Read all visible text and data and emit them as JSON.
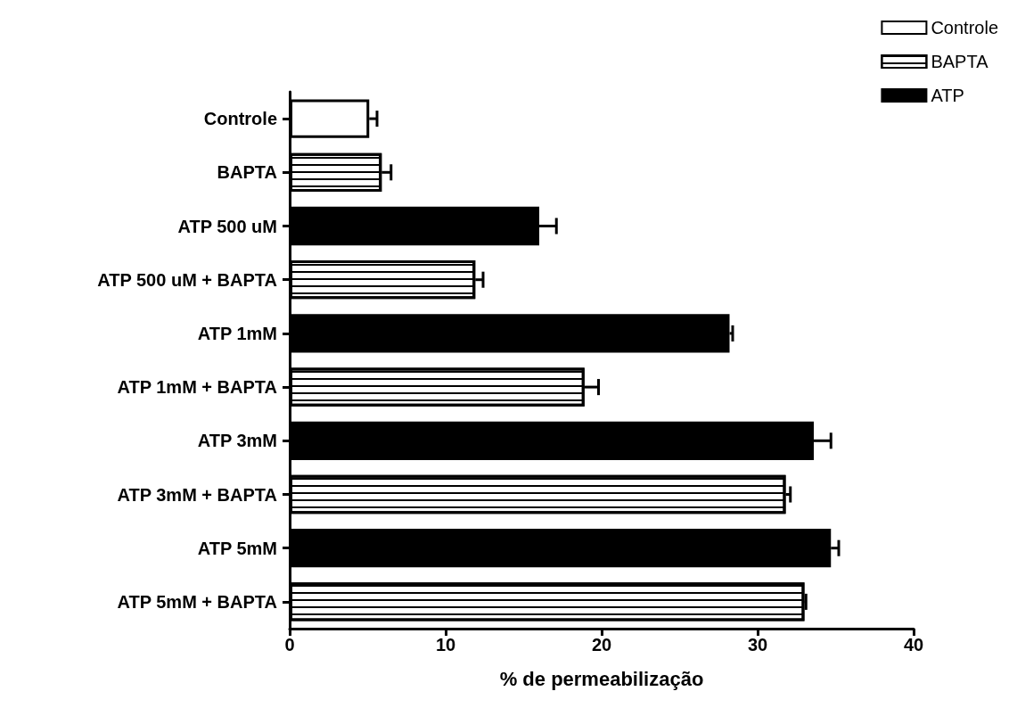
{
  "chart_data": {
    "type": "bar",
    "orientation": "horizontal",
    "xlabel": "% de permeabilização",
    "categories": [
      "Controle",
      "BAPTA",
      "ATP 500 uM",
      "ATP 500 uM + BAPTA",
      "ATP 1mM",
      "ATP 1mM + BAPTA",
      "ATP 3mM",
      "ATP 3mM + BAPTA",
      "ATP 5mM",
      "ATP 5mM + BAPTA"
    ],
    "series": [
      {
        "name": "Controle",
        "color": "#ffffff",
        "values": [
          5.1,
          null,
          null,
          null,
          null,
          null,
          null,
          null,
          null,
          null
        ],
        "errors": [
          0.5,
          null,
          null,
          null,
          null,
          null,
          null,
          null,
          null,
          null
        ]
      },
      {
        "name": "BAPTA",
        "color": "#ffffff",
        "values": [
          null,
          5.9,
          null,
          11.9,
          null,
          18.9,
          null,
          31.8,
          null,
          33.0
        ],
        "errors": [
          null,
          0.6,
          null,
          0.5,
          null,
          0.9,
          null,
          0.3,
          null,
          0.1
        ]
      },
      {
        "name": "ATP",
        "color": "#000000",
        "values": [
          null,
          null,
          16.0,
          null,
          28.2,
          null,
          33.6,
          null,
          34.7,
          null
        ],
        "errors": [
          null,
          null,
          1.1,
          null,
          0.2,
          null,
          1.1,
          null,
          0.5,
          null
        ]
      }
    ],
    "xlim": [
      0,
      40
    ],
    "xticks": [
      0,
      10,
      20,
      30,
      40
    ],
    "grid": false,
    "legend": "top right"
  }
}
